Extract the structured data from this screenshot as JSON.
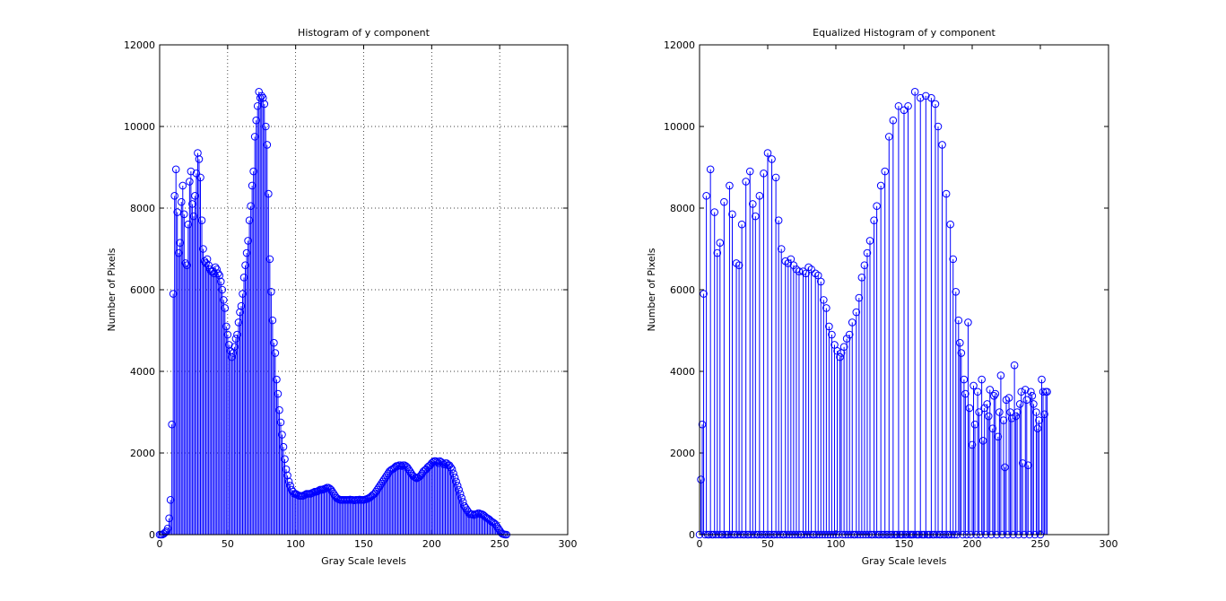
{
  "chart_data": [
    {
      "type": "stem",
      "title": "Histogram of y component",
      "xlabel": "Gray Scale levels",
      "ylabel": "Number of Pixels",
      "color": "#0000ff",
      "grid": true,
      "xlim": [
        0,
        300
      ],
      "ylim": [
        0,
        12000
      ],
      "xticks": [
        0,
        50,
        100,
        150,
        200,
        250,
        300
      ],
      "yticks": [
        0,
        2000,
        4000,
        6000,
        8000,
        10000,
        12000
      ],
      "x": [
        0,
        1,
        2,
        3,
        4,
        5,
        6,
        7,
        8,
        9,
        10,
        11,
        12,
        13,
        14,
        15,
        16,
        17,
        18,
        19,
        20,
        21,
        22,
        23,
        24,
        25,
        26,
        27,
        28,
        29,
        30,
        31,
        32,
        33,
        34,
        35,
        36,
        37,
        38,
        39,
        40,
        41,
        42,
        43,
        44,
        45,
        46,
        47,
        48,
        49,
        50,
        51,
        52,
        53,
        54,
        55,
        56,
        57,
        58,
        59,
        60,
        61,
        62,
        63,
        64,
        65,
        66,
        67,
        68,
        69,
        70,
        71,
        72,
        73,
        74,
        75,
        76,
        77,
        78,
        79,
        80,
        81,
        82,
        83,
        84,
        85,
        86,
        87,
        88,
        89,
        90,
        91,
        92,
        93,
        94,
        95,
        96,
        97,
        98,
        99,
        100,
        101,
        102,
        103,
        104,
        105,
        106,
        107,
        108,
        109,
        110,
        111,
        112,
        113,
        114,
        115,
        116,
        117,
        118,
        119,
        120,
        121,
        122,
        123,
        124,
        125,
        126,
        127,
        128,
        129,
        130,
        131,
        132,
        133,
        134,
        135,
        136,
        137,
        138,
        139,
        140,
        141,
        142,
        143,
        144,
        145,
        146,
        147,
        148,
        149,
        150,
        151,
        152,
        153,
        154,
        155,
        156,
        157,
        158,
        159,
        160,
        161,
        162,
        163,
        164,
        165,
        166,
        167,
        168,
        169,
        170,
        171,
        172,
        173,
        174,
        175,
        176,
        177,
        178,
        179,
        180,
        181,
        182,
        183,
        184,
        185,
        186,
        187,
        188,
        189,
        190,
        191,
        192,
        193,
        194,
        195,
        196,
        197,
        198,
        199,
        200,
        201,
        202,
        203,
        204,
        205,
        206,
        207,
        208,
        209,
        210,
        211,
        212,
        213,
        214,
        215,
        216,
        217,
        218,
        219,
        220,
        221,
        222,
        223,
        224,
        225,
        226,
        227,
        228,
        229,
        230,
        231,
        232,
        233,
        234,
        235,
        236,
        237,
        238,
        239,
        240,
        241,
        242,
        243,
        244,
        245,
        246,
        247,
        248,
        249,
        250,
        251,
        252,
        253,
        254,
        255
      ],
      "values": [
        0,
        0,
        0,
        20,
        50,
        80,
        150,
        400,
        850,
        2700,
        5900,
        8300,
        8950,
        7900,
        6900,
        7150,
        8150,
        8550,
        7850,
        6650,
        6600,
        7600,
        8650,
        8900,
        8100,
        7800,
        8300,
        8850,
        9350,
        9200,
        8750,
        7700,
        7000,
        6700,
        6650,
        6750,
        6600,
        6500,
        6450,
        6450,
        6400,
        6550,
        6500,
        6400,
        6350,
        6200,
        6000,
        5750,
        5550,
        5100,
        4900,
        4650,
        4500,
        4350,
        4450,
        4600,
        4800,
        4900,
        5200,
        5450,
        5600,
        5900,
        6300,
        6600,
        6900,
        7200,
        7700,
        8050,
        8550,
        8900,
        9750,
        10150,
        10500,
        10850,
        10700,
        10750,
        10700,
        10550,
        10000,
        9550,
        8350,
        6750,
        5950,
        5250,
        4700,
        4450,
        3800,
        3450,
        3050,
        2750,
        2450,
        2150,
        1850,
        1600,
        1450,
        1300,
        1200,
        1100,
        1050,
        1000,
        1000,
        980,
        960,
        950,
        950,
        950,
        960,
        980,
        1000,
        1000,
        1000,
        1000,
        1020,
        1030,
        1050,
        1050,
        1060,
        1080,
        1100,
        1100,
        1100,
        1120,
        1130,
        1150,
        1150,
        1130,
        1100,
        1050,
        1000,
        950,
        900,
        880,
        860,
        850,
        850,
        850,
        850,
        850,
        850,
        850,
        860,
        850,
        850,
        840,
        850,
        850,
        850,
        860,
        850,
        850,
        850,
        860,
        870,
        880,
        900,
        920,
        950,
        980,
        1000,
        1050,
        1100,
        1150,
        1200,
        1250,
        1300,
        1350,
        1400,
        1450,
        1500,
        1550,
        1580,
        1600,
        1620,
        1650,
        1680,
        1680,
        1700,
        1700,
        1680,
        1700,
        1700,
        1680,
        1650,
        1600,
        1550,
        1500,
        1450,
        1420,
        1400,
        1380,
        1400,
        1420,
        1450,
        1500,
        1550,
        1580,
        1600,
        1650,
        1680,
        1700,
        1750,
        1780,
        1800,
        1800,
        1780,
        1750,
        1800,
        1780,
        1750,
        1720,
        1750,
        1750,
        1700,
        1700,
        1650,
        1600,
        1500,
        1400,
        1300,
        1200,
        1100,
        1000,
        900,
        800,
        700,
        650,
        600,
        550,
        500,
        500,
        500,
        480,
        500,
        500,
        520,
        520,
        500,
        500,
        480,
        450,
        420,
        400,
        380,
        350,
        320,
        300,
        280,
        250,
        200,
        150,
        100,
        50,
        20,
        10,
        0,
        0
      ]
    },
    {
      "type": "stem",
      "title": "Equalized Histogram of y component",
      "xlabel": "Gray Scale levels",
      "ylabel": "Number of Pixels",
      "color": "#0000ff",
      "grid": false,
      "xlim": [
        0,
        300
      ],
      "ylim": [
        0,
        12000
      ],
      "xticks": [
        0,
        50,
        100,
        150,
        200,
        250,
        300
      ],
      "yticks": [
        0,
        2000,
        4000,
        6000,
        8000,
        10000,
        12000
      ],
      "x": [
        0,
        1,
        2,
        3,
        4,
        5,
        6,
        7,
        8,
        9,
        10,
        11,
        12,
        13,
        14,
        15,
        16,
        17,
        18,
        19,
        20,
        21,
        22,
        23,
        24,
        25,
        26,
        27,
        28,
        29,
        30,
        31,
        32,
        33,
        34,
        35,
        36,
        37,
        38,
        39,
        40,
        41,
        42,
        43,
        44,
        45,
        46,
        47,
        48,
        49,
        50,
        51,
        52,
        53,
        54,
        55,
        56,
        57,
        58,
        59,
        60,
        61,
        62,
        63,
        64,
        65,
        66,
        67,
        68,
        69,
        70,
        71,
        72,
        73,
        74,
        75,
        76,
        77,
        78,
        79,
        80,
        81,
        82,
        83,
        84,
        85,
        86,
        87,
        88,
        89,
        90,
        91,
        92,
        93,
        94,
        95,
        96,
        97,
        98,
        99,
        100,
        101,
        102,
        103,
        104,
        105,
        106,
        107,
        108,
        109,
        110,
        111,
        112,
        113,
        114,
        115,
        116,
        117,
        118,
        119,
        120,
        121,
        122,
        123,
        124,
        125,
        126,
        127,
        128,
        129,
        130,
        131,
        132,
        133,
        134,
        135,
        136,
        137,
        138,
        139,
        140,
        141,
        142,
        143,
        144,
        145,
        146,
        147,
        148,
        149,
        150,
        151,
        152,
        153,
        154,
        155,
        156,
        157,
        158,
        159,
        160,
        161,
        162,
        163,
        164,
        165,
        166,
        167,
        168,
        169,
        170,
        171,
        172,
        173,
        174,
        175,
        176,
        177,
        178,
        179,
        180,
        181,
        182,
        183,
        184,
        185,
        186,
        187,
        188,
        189,
        190,
        191,
        192,
        193,
        194,
        195,
        196,
        197,
        198,
        199,
        200,
        201,
        202,
        203,
        204,
        205,
        206,
        207,
        208,
        209,
        210,
        211,
        212,
        213,
        214,
        215,
        216,
        217,
        218,
        219,
        220,
        221,
        222,
        223,
        224,
        225,
        226,
        227,
        228,
        229,
        230,
        231,
        232,
        233,
        234,
        235,
        236,
        237,
        238,
        239,
        240,
        241,
        242,
        243,
        244,
        245,
        246,
        247,
        248,
        249,
        250,
        251,
        252,
        253,
        254,
        255
      ],
      "values": [
        0,
        1350,
        2700,
        5900,
        0,
        8300,
        0,
        0,
        8950,
        0,
        0,
        7900,
        0,
        6900,
        0,
        7150,
        0,
        0,
        8150,
        0,
        0,
        0,
        8550,
        0,
        7850,
        0,
        0,
        6650,
        0,
        6600,
        0,
        7600,
        0,
        0,
        8650,
        0,
        0,
        8900,
        0,
        8100,
        0,
        7800,
        0,
        0,
        8300,
        0,
        0,
        8850,
        0,
        0,
        9350,
        0,
        0,
        9200,
        0,
        0,
        8750,
        0,
        7700,
        0,
        7000,
        0,
        0,
        6700,
        0,
        6650,
        0,
        6750,
        0,
        6600,
        0,
        6500,
        0,
        6450,
        0,
        0,
        6450,
        0,
        6400,
        0,
        6550,
        0,
        6500,
        0,
        0,
        6400,
        0,
        6350,
        0,
        6200,
        0,
        5750,
        0,
        5550,
        0,
        5100,
        0,
        4900,
        0,
        4650,
        0,
        4500,
        0,
        4350,
        4450,
        0,
        4600,
        0,
        4800,
        0,
        4900,
        0,
        5200,
        0,
        0,
        5450,
        0,
        5800,
        0,
        6300,
        0,
        6600,
        0,
        6900,
        0,
        7200,
        0,
        0,
        7700,
        0,
        8050,
        0,
        0,
        8550,
        0,
        0,
        8900,
        0,
        0,
        9750,
        0,
        0,
        10150,
        0,
        0,
        0,
        10500,
        0,
        0,
        0,
        10400,
        0,
        0,
        10500,
        0,
        0,
        0,
        0,
        10850,
        0,
        0,
        0,
        10700,
        0,
        0,
        0,
        10750,
        0,
        0,
        0,
        10700,
        0,
        0,
        10550,
        0,
        10000,
        0,
        0,
        9550,
        0,
        0,
        8350,
        0,
        0,
        7600,
        0,
        6750,
        0,
        5950,
        0,
        5250,
        4700,
        4450,
        0,
        3800,
        3450,
        0,
        5200,
        3100,
        0,
        2200,
        3650,
        2700,
        0,
        3500,
        3000,
        0,
        3800,
        2300,
        3100,
        0,
        3200,
        2900,
        3550,
        0,
        2600,
        3400,
        3450,
        0,
        2400,
        3000,
        3900,
        0,
        2800,
        1650,
        3300,
        0,
        3350,
        3000,
        2850,
        0,
        4150,
        2900,
        3000,
        0,
        3200,
        3500,
        1750,
        0,
        3550,
        3300,
        1700,
        0,
        3500,
        3400,
        3200,
        0,
        3000,
        2600,
        2800,
        0,
        3800,
        3500,
        2950,
        3500,
        3500
      ]
    }
  ]
}
